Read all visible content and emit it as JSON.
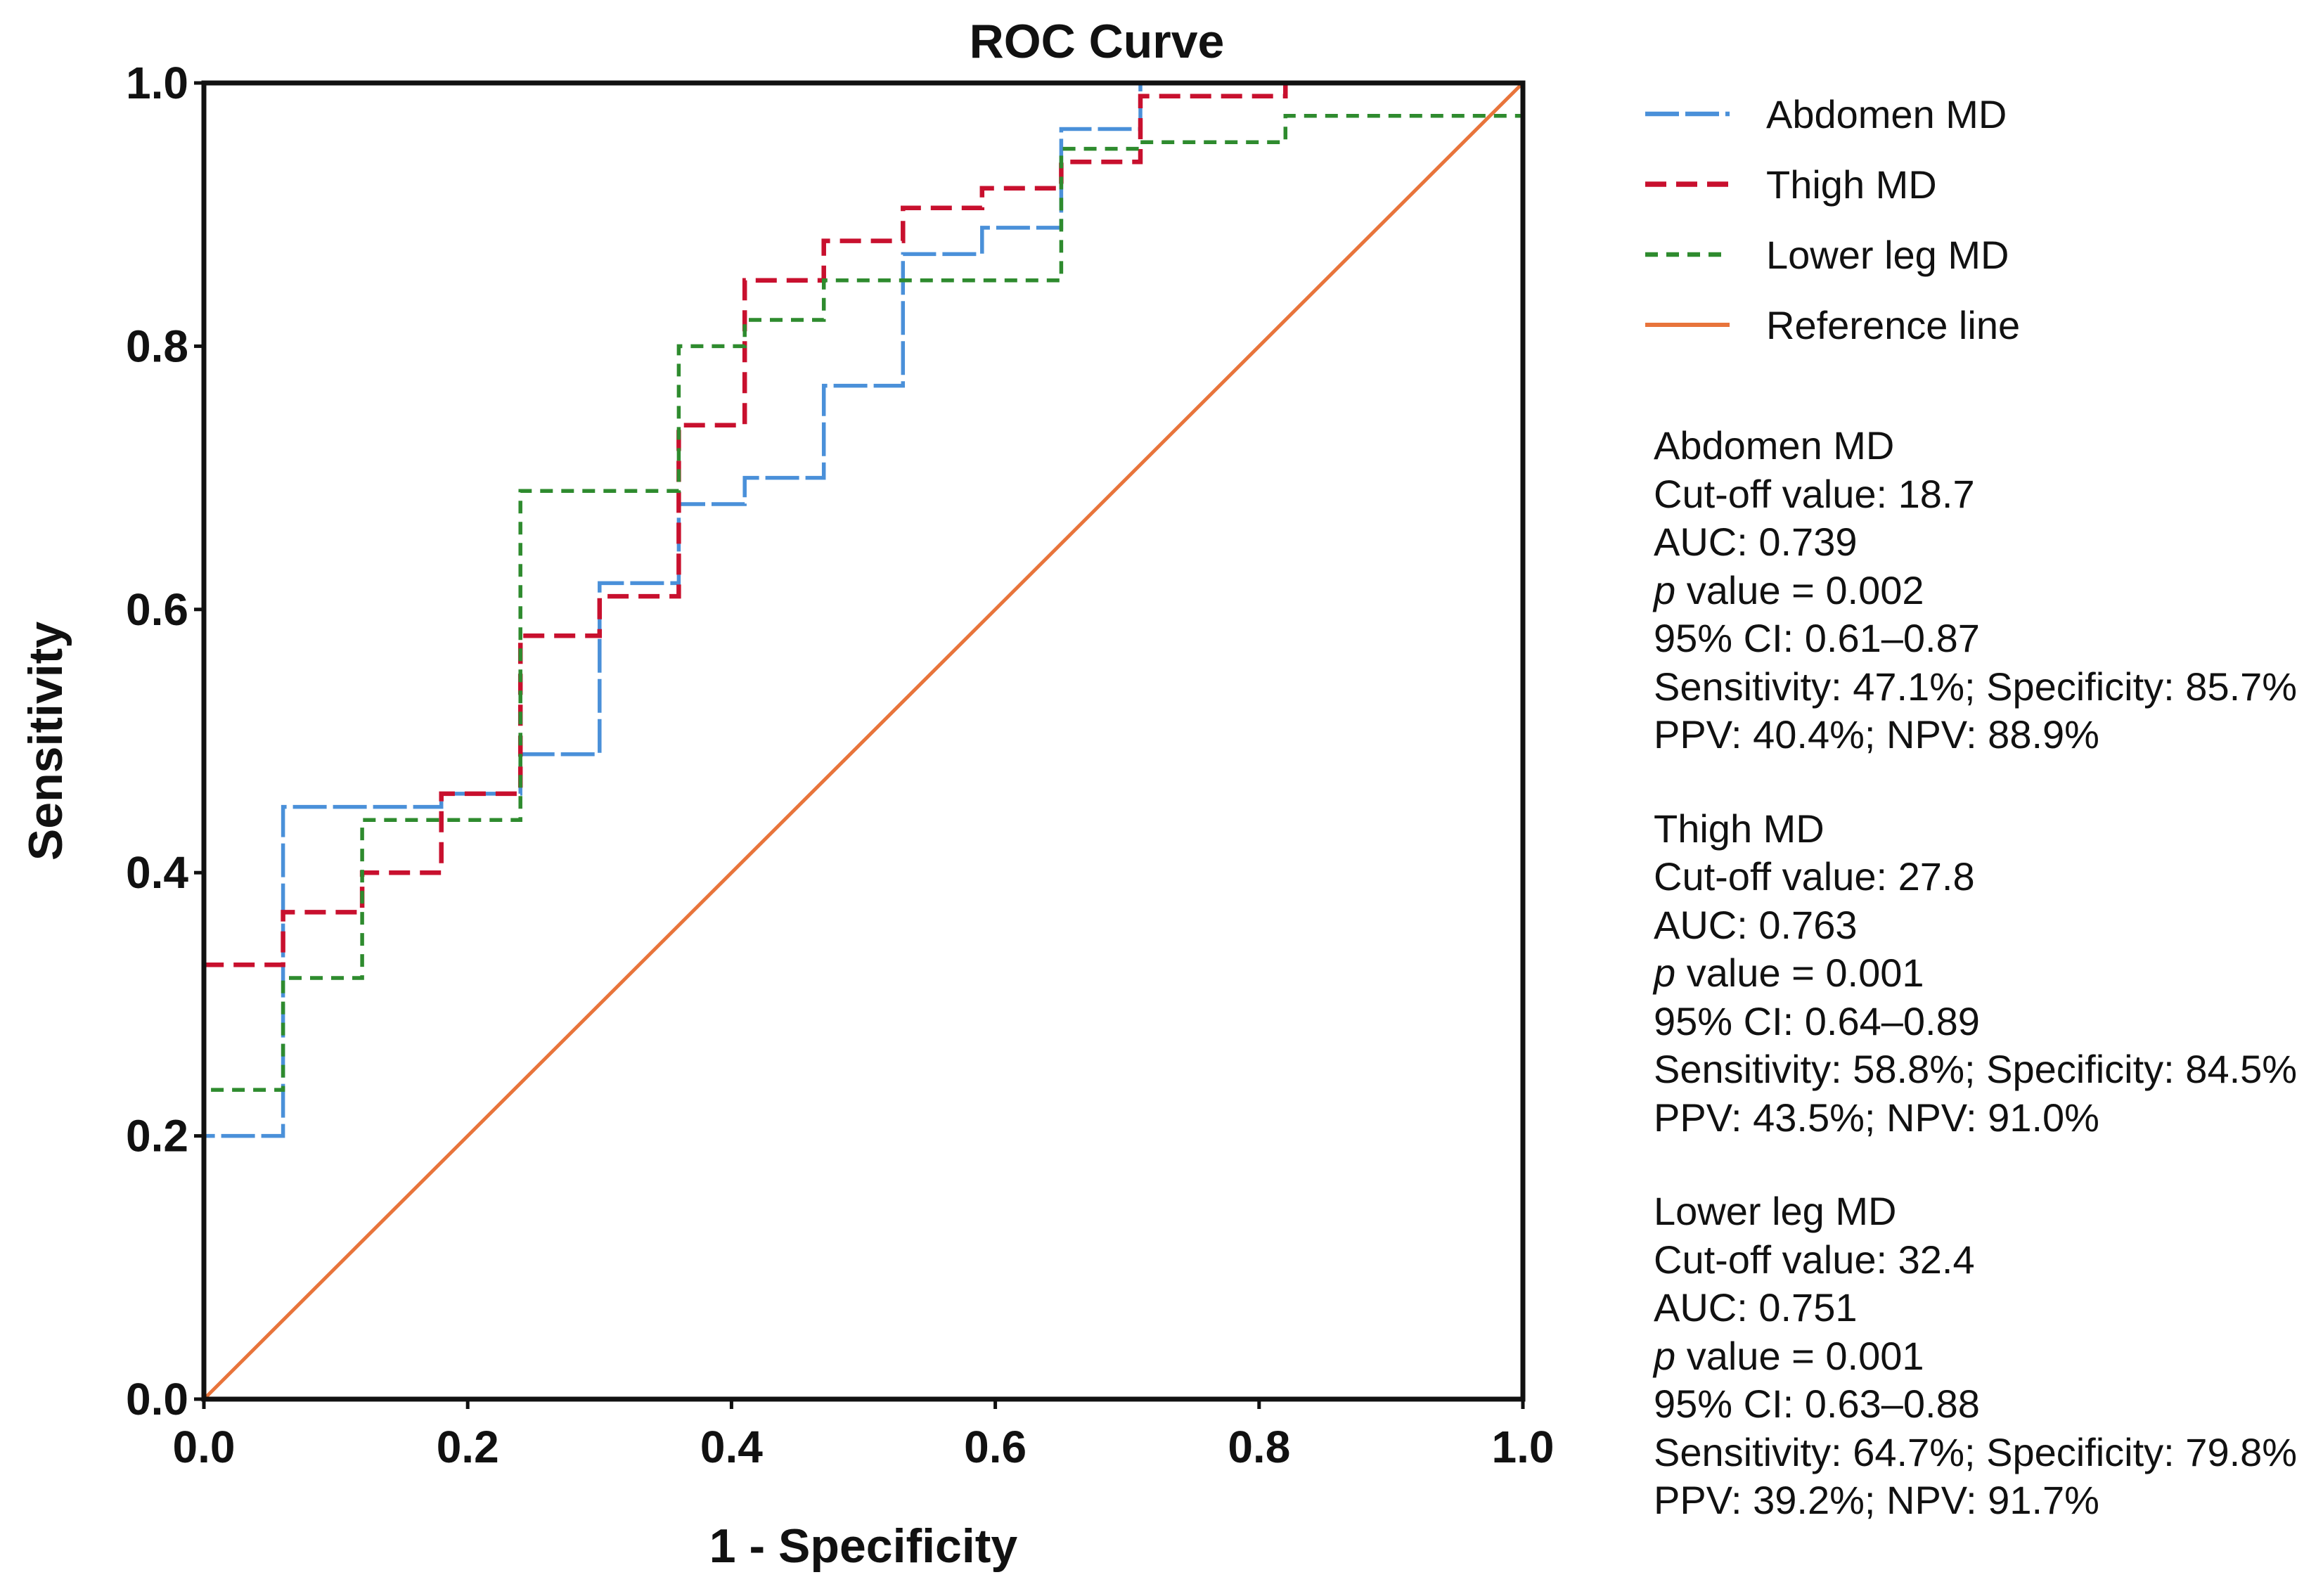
{
  "chart_data": {
    "type": "line",
    "title": "ROC Curve",
    "xlabel": "1 - Specificity",
    "ylabel": "Sensitivity",
    "xlim": [
      0,
      1
    ],
    "ylim": [
      0,
      1
    ],
    "xticks": [
      "0.0",
      "0.2",
      "0.4",
      "0.6",
      "0.8",
      "1.0"
    ],
    "yticks": [
      "0.0",
      "0.2",
      "0.4",
      "0.6",
      "0.8",
      "1.0"
    ],
    "grid": false,
    "legend_position": "right",
    "series": [
      {
        "name": "Abdomen MD",
        "color": "#4a90d9",
        "style": "long-dash",
        "x": [
          0,
          0,
          0.06,
          0.06,
          0.18,
          0.18,
          0.24,
          0.24,
          0.3,
          0.3,
          0.36,
          0.36,
          0.41,
          0.41,
          0.47,
          0.47,
          0.53,
          0.53,
          0.59,
          0.59,
          0.65,
          0.65,
          0.71,
          0.71,
          1.0
        ],
        "y": [
          0,
          0.2,
          0.2,
          0.45,
          0.45,
          0.46,
          0.46,
          0.49,
          0.49,
          0.62,
          0.62,
          0.68,
          0.68,
          0.7,
          0.7,
          0.77,
          0.77,
          0.87,
          0.87,
          0.89,
          0.89,
          0.965,
          0.965,
          1.0,
          1.0
        ]
      },
      {
        "name": "Thigh MD",
        "color": "#c8102e",
        "style": "dash",
        "x": [
          0,
          0,
          0.06,
          0.06,
          0.12,
          0.12,
          0.18,
          0.18,
          0.24,
          0.24,
          0.3,
          0.3,
          0.36,
          0.36,
          0.41,
          0.41,
          0.47,
          0.47,
          0.53,
          0.53,
          0.59,
          0.59,
          0.65,
          0.65,
          0.71,
          0.71,
          0.82,
          0.82,
          1.0
        ],
        "y": [
          0,
          0.33,
          0.33,
          0.37,
          0.37,
          0.4,
          0.4,
          0.46,
          0.46,
          0.58,
          0.58,
          0.61,
          0.61,
          0.74,
          0.74,
          0.85,
          0.85,
          0.88,
          0.88,
          0.905,
          0.905,
          0.92,
          0.92,
          0.94,
          0.94,
          0.99,
          0.99,
          1.0,
          1.0
        ]
      },
      {
        "name": "Lower leg MD",
        "color": "#2e8b2e",
        "style": "short-dash",
        "x": [
          0,
          0,
          0.06,
          0.06,
          0.12,
          0.12,
          0.24,
          0.24,
          0.36,
          0.36,
          0.41,
          0.41,
          0.47,
          0.47,
          0.65,
          0.65,
          0.71,
          0.71,
          0.82,
          0.82,
          1.0
        ],
        "y": [
          0,
          0.235,
          0.235,
          0.32,
          0.32,
          0.44,
          0.44,
          0.69,
          0.69,
          0.8,
          0.8,
          0.82,
          0.82,
          0.85,
          0.85,
          0.95,
          0.95,
          0.955,
          0.955,
          0.975,
          0.975
        ]
      },
      {
        "name": "Reference line",
        "color": "#e8743b",
        "style": "solid",
        "x": [
          0,
          1
        ],
        "y": [
          0,
          1
        ]
      }
    ],
    "annotations": [
      {
        "title": "Abdomen MD",
        "cutoff": "Cut-off value: 18.7",
        "auc": "AUC: 0.739",
        "p_letter": "p",
        "p_rest": " value = 0.002",
        "ci": "95% CI: 0.61–0.87",
        "sens_spec": "Sensitivity: 47.1%; Specificity: 85.7%",
        "ppv_npv": "PPV: 40.4%; NPV: 88.9%"
      },
      {
        "title": "Thigh MD",
        "cutoff": "Cut-off value: 27.8",
        "auc": "AUC: 0.763",
        "p_letter": "p",
        "p_rest": " value = 0.001",
        "ci": "95% CI: 0.64–0.89",
        "sens_spec": "Sensitivity: 58.8%; Specificity: 84.5%",
        "ppv_npv": "PPV: 43.5%; NPV: 91.0%"
      },
      {
        "title": "Lower leg MD",
        "cutoff": "Cut-off value: 32.4",
        "auc": "AUC: 0.751",
        "p_letter": "p",
        "p_rest": " value = 0.001",
        "ci": "95% CI: 0.63–0.88",
        "sens_spec": "Sensitivity: 64.7%; Specificity: 79.8%",
        "ppv_npv": "PPV: 39.2%; NPV: 91.7%"
      }
    ]
  }
}
